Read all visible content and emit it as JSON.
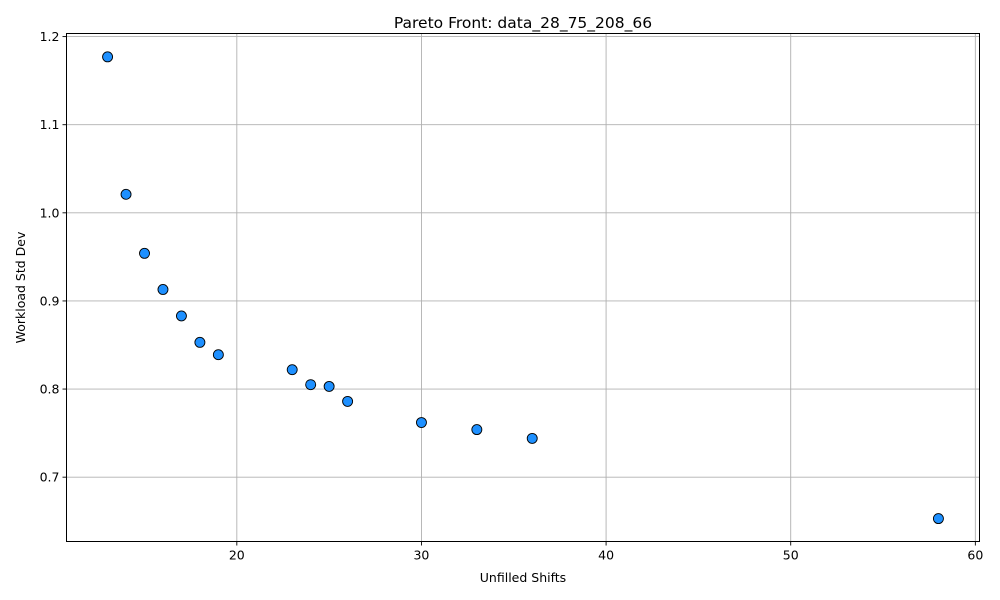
{
  "chart_data": {
    "type": "scatter",
    "title": "Pareto Front: data_28_75_208_66",
    "xlabel": "Unfilled Shifts",
    "ylabel": "Workload Std Dev",
    "xlim": [
      10.775,
      60.225
    ],
    "ylim": [
      0.627,
      1.2035
    ],
    "xticks": [
      20,
      30,
      40,
      50,
      60
    ],
    "xtick_labels": [
      "20",
      "30",
      "40",
      "50",
      "60"
    ],
    "yticks": [
      0.7,
      0.8,
      0.9,
      1.0,
      1.1,
      1.2
    ],
    "ytick_labels": [
      "0.7",
      "0.8",
      "0.9",
      "1.0",
      "1.1",
      "1.2"
    ],
    "grid": true,
    "marker_color": "#1e90ff",
    "marker_edge_color": "#000000",
    "points": [
      {
        "x": 13,
        "y": 1.177
      },
      {
        "x": 14,
        "y": 1.021
      },
      {
        "x": 15,
        "y": 0.954
      },
      {
        "x": 16,
        "y": 0.913
      },
      {
        "x": 17,
        "y": 0.883
      },
      {
        "x": 18,
        "y": 0.853
      },
      {
        "x": 19,
        "y": 0.839
      },
      {
        "x": 23,
        "y": 0.822
      },
      {
        "x": 24,
        "y": 0.805
      },
      {
        "x": 25,
        "y": 0.803
      },
      {
        "x": 26,
        "y": 0.786
      },
      {
        "x": 30,
        "y": 0.762
      },
      {
        "x": 33,
        "y": 0.754
      },
      {
        "x": 36,
        "y": 0.744
      },
      {
        "x": 58,
        "y": 0.653
      }
    ]
  }
}
